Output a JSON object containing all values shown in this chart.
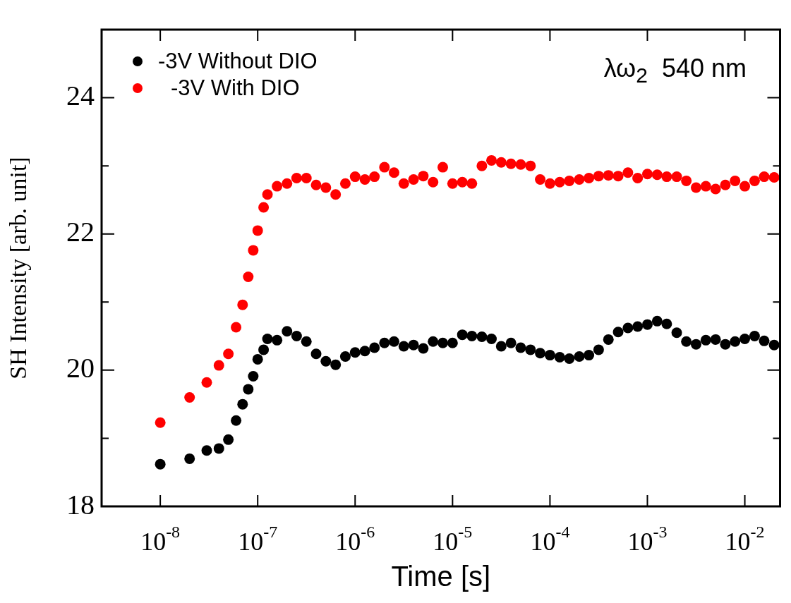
{
  "chart_data": {
    "type": "scatter",
    "xlabel": "Time [s]",
    "ylabel": "SH Intensity [arb. unit]",
    "annotations": [
      "λω$_{2}$  540 nm"
    ],
    "log": "x",
    "grid": false,
    "legend": "top left",
    "marker": "circle",
    "xlim": [
      2.5e-09,
      0.023
    ],
    "xticks": [
      {
        "value": 1e-08,
        "label": "10$^{-8}$"
      },
      {
        "value": 1e-07,
        "label": "10$^{-7}$"
      },
      {
        "value": 1e-06,
        "label": "10$^{-6}$"
      },
      {
        "value": 1e-05,
        "label": "10$^{-5}$"
      },
      {
        "value": 0.0001,
        "label": "10$^{-4}$"
      },
      {
        "value": 0.001,
        "label": "10$^{-3}$"
      },
      {
        "value": 0.01,
        "label": "10$^{-2}$"
      }
    ],
    "ylim": [
      18,
      25
    ],
    "yticks": [
      18,
      {
        "value": 19,
        "label": null
      },
      20,
      {
        "value": 21,
        "label": null
      },
      22,
      {
        "value": 23,
        "label": null
      },
      24
    ],
    "x": [
      1e-08,
      2e-08,
      3e-08,
      4e-08,
      5e-08,
      6e-08,
      7e-08,
      8e-08,
      9e-08,
      1e-07,
      1.15e-07,
      1.26e-07,
      1.58e-07,
      2e-07,
      2.51e-07,
      3.16e-07,
      3.98e-07,
      5.01e-07,
      6.31e-07,
      7.94e-07,
      1e-06,
      1.26e-06,
      1.58e-06,
      2e-06,
      2.51e-06,
      3.16e-06,
      3.98e-06,
      5.01e-06,
      6.31e-06,
      7.94e-06,
      1e-05,
      1.26e-05,
      1.58e-05,
      2e-05,
      2.51e-05,
      3.16e-05,
      3.98e-05,
      5.01e-05,
      6.31e-05,
      7.94e-05,
      0.0001,
      0.000126,
      0.000158,
      0.0002,
      0.000251,
      0.000316,
      0.000398,
      0.000501,
      0.000631,
      0.000794,
      0.001,
      0.00126,
      0.00158,
      0.002,
      0.00251,
      0.00316,
      0.00398,
      0.00501,
      0.00631,
      0.00794,
      0.01,
      0.0126,
      0.0158,
      0.02
    ],
    "series": [
      {
        "name": "-3V Without DIO",
        "color": "#000000",
        "values": [
          18.62,
          18.7,
          18.82,
          18.85,
          18.98,
          19.26,
          19.5,
          19.72,
          19.91,
          20.16,
          20.3,
          20.46,
          20.44,
          20.57,
          20.5,
          20.42,
          20.24,
          20.13,
          20.08,
          20.2,
          20.26,
          20.28,
          20.33,
          20.4,
          20.42,
          20.35,
          20.37,
          20.32,
          20.42,
          20.4,
          20.4,
          20.52,
          20.5,
          20.49,
          20.46,
          20.35,
          20.4,
          20.33,
          20.3,
          20.25,
          20.22,
          20.19,
          20.17,
          20.2,
          20.22,
          20.3,
          20.45,
          20.56,
          20.62,
          20.64,
          20.67,
          20.72,
          20.68,
          20.55,
          20.42,
          20.38,
          20.44,
          20.45,
          20.38,
          20.42,
          20.46,
          20.5,
          20.43,
          20.37
        ]
      },
      {
        "name": "-3V With DIO",
        "color": "#ff0000",
        "values": [
          19.23,
          19.6,
          19.82,
          20.07,
          20.24,
          20.63,
          20.96,
          21.37,
          21.76,
          22.05,
          22.39,
          22.58,
          22.7,
          22.74,
          22.82,
          22.82,
          22.72,
          22.68,
          22.58,
          22.74,
          22.84,
          22.8,
          22.84,
          22.98,
          22.9,
          22.74,
          22.8,
          22.85,
          22.76,
          22.98,
          22.74,
          22.76,
          22.74,
          23.0,
          23.08,
          23.05,
          23.03,
          23.02,
          23.0,
          22.8,
          22.74,
          22.76,
          22.78,
          22.8,
          22.82,
          22.85,
          22.86,
          22.85,
          22.9,
          22.82,
          22.88,
          22.87,
          22.84,
          22.84,
          22.78,
          22.68,
          22.7,
          22.66,
          22.72,
          22.78,
          22.7,
          22.78,
          22.84,
          22.83
        ]
      }
    ]
  }
}
